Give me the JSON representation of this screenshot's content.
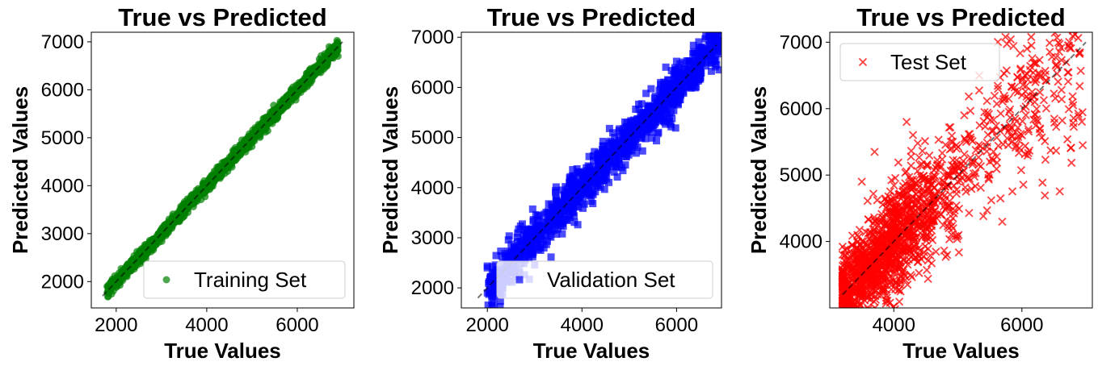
{
  "chart_data": [
    {
      "type": "scatter",
      "title": "True vs Predicted",
      "xlabel": "True Values",
      "ylabel": "Predicted Values",
      "xlim": [
        1450,
        7250
      ],
      "ylim": [
        1450,
        7200
      ],
      "xticks": [
        2000,
        4000,
        6000
      ],
      "yticks": [
        2000,
        3000,
        4000,
        5000,
        6000,
        7000
      ],
      "grid": false,
      "legend_position": "lower-right",
      "reference_line": [
        [
          1700,
          1700
        ],
        [
          7000,
          7000
        ]
      ],
      "series": [
        {
          "name": "Training Set",
          "marker": "circle",
          "color": "#008000",
          "x_range": [
            1800,
            6900
          ],
          "spread": 70,
          "points": [
            [
              1800,
              1900
            ],
            [
              1900,
              1950
            ],
            [
              2000,
              2050
            ],
            [
              2500,
              2450
            ],
            [
              3000,
              3050
            ],
            [
              3500,
              3450
            ],
            [
              4000,
              4050
            ],
            [
              4500,
              4500
            ],
            [
              5000,
              4950
            ],
            [
              5500,
              5550
            ],
            [
              6000,
              6000
            ],
            [
              6500,
              6500
            ],
            [
              6900,
              6700
            ]
          ]
        }
      ]
    },
    {
      "type": "scatter",
      "title": "True vs Predicted",
      "xlabel": "True Values",
      "ylabel": "Predicted Values",
      "xlim": [
        1450,
        6950
      ],
      "ylim": [
        1600,
        7100
      ],
      "xticks": [
        2000,
        4000,
        6000
      ],
      "yticks": [
        2000,
        3000,
        4000,
        5000,
        6000,
        7000
      ],
      "grid": false,
      "legend_position": "lower-right",
      "reference_line": [
        [
          1800,
          1800
        ],
        [
          6850,
          6850
        ]
      ],
      "series": [
        {
          "name": "Validation Set",
          "marker": "square",
          "color": "#0000ff",
          "x_range": [
            2000,
            6900
          ],
          "spread": 220,
          "points": [
            [
              2000,
              2400
            ],
            [
              2050,
              1950
            ],
            [
              2500,
              2300
            ],
            [
              3000,
              3000
            ],
            [
              3500,
              3300
            ],
            [
              4000,
              3900
            ],
            [
              4500,
              4300
            ],
            [
              5000,
              4900
            ],
            [
              5500,
              5400
            ],
            [
              6000,
              5900
            ],
            [
              6500,
              6400
            ],
            [
              6900,
              6350
            ]
          ]
        }
      ]
    },
    {
      "type": "scatter",
      "title": "True vs Predicted",
      "xlabel": "True Values",
      "ylabel": "Predicted Values",
      "xlim": [
        3000,
        7100
      ],
      "ylim": [
        3000,
        7150
      ],
      "xticks": [
        4000,
        6000
      ],
      "yticks": [
        4000,
        5000,
        6000,
        7000
      ],
      "grid": false,
      "legend_position": "upper-left",
      "reference_line": [
        [
          3200,
          3200
        ],
        [
          7000,
          7000
        ]
      ],
      "series": [
        {
          "name": "Test Set",
          "marker": "x",
          "color": "#ff0000",
          "x_range": [
            3200,
            6950
          ],
          "spread": 280,
          "points": [
            [
              3300,
              3600
            ],
            [
              3500,
              4900
            ],
            [
              3700,
              5350
            ],
            [
              4000,
              4200
            ],
            [
              4200,
              5800
            ],
            [
              4500,
              4500
            ],
            [
              5000,
              4900
            ],
            [
              5100,
              5900
            ],
            [
              5500,
              5200
            ],
            [
              6000,
              5600
            ],
            [
              6200,
              6100
            ],
            [
              6800,
              6050
            ],
            [
              6950,
              5450
            ]
          ]
        }
      ]
    }
  ]
}
